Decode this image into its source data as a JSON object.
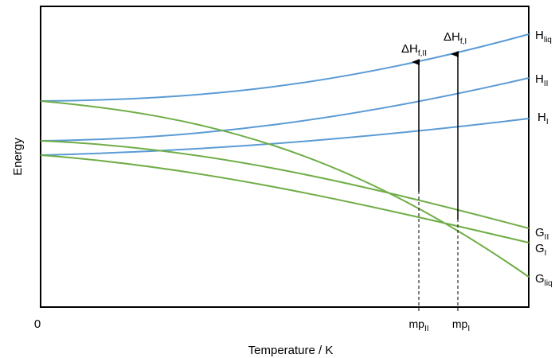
{
  "axes": {
    "y_label": "Energy",
    "x_label": "Temperature / K",
    "x_origin_label": "0"
  },
  "colors": {
    "enthalpy": "#5b9bd5",
    "gibbs": "#70ad47",
    "axis": "#000000",
    "dashed": "#000000"
  },
  "curves": {
    "H_liq": {
      "main": "H",
      "sub": "liq"
    },
    "H_II": {
      "main": "H",
      "sub": "II"
    },
    "H_I": {
      "main": "H",
      "sub": "I"
    },
    "G_II": {
      "main": "G",
      "sub": "II"
    },
    "G_I": {
      "main": "G",
      "sub": "I"
    },
    "G_liq": {
      "main": "G",
      "sub": "liq"
    }
  },
  "melting_points": {
    "mp_II": {
      "main": "mp",
      "sub": "II"
    },
    "mp_I": {
      "main": "mp",
      "sub": "I"
    }
  },
  "enthalpy_of_fusion": {
    "dH_f_II": {
      "main": "ΔH",
      "sub": "f,II"
    },
    "dH_f_I": {
      "main": "ΔH",
      "sub": "f,I"
    }
  }
}
